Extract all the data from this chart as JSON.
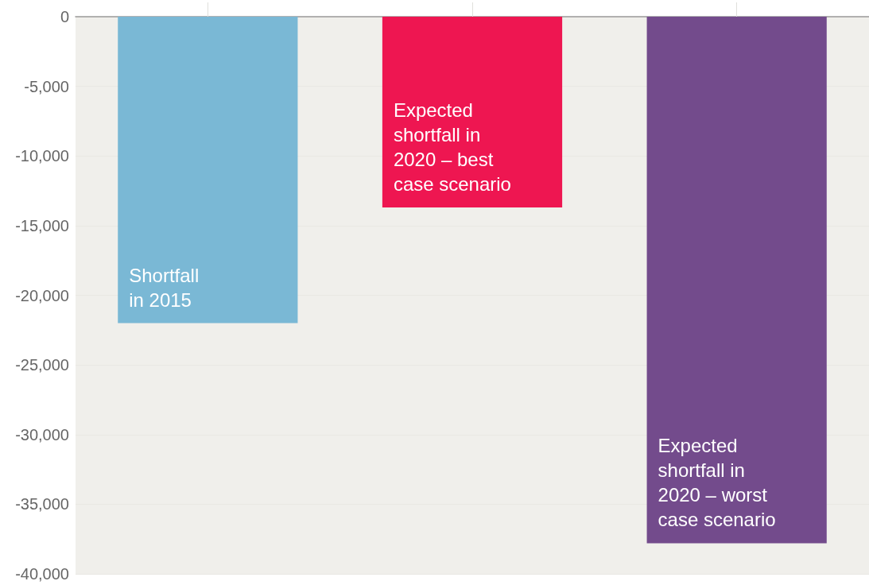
{
  "chart_data": {
    "type": "bar",
    "categories": [
      "Shortfall\nin 2015",
      "Expected\nshortfall in\n2020 – best\ncase scenario",
      "Expected\nshortfall in\n2020 – worst\ncase scenario"
    ],
    "values": [
      -22000,
      -13700,
      -37800
    ],
    "colors": [
      "#7ab8d5",
      "#ee1651",
      "#734b8c"
    ],
    "ylim": [
      -40000,
      0
    ],
    "yticks": [
      {
        "value": -40000,
        "label": "-40,000"
      },
      {
        "value": -35000,
        "label": "-35,000"
      },
      {
        "value": -30000,
        "label": "-30,000"
      },
      {
        "value": -25000,
        "label": "-25,000"
      },
      {
        "value": -20000,
        "label": "-20,000"
      },
      {
        "value": -15000,
        "label": "-15,000"
      },
      {
        "value": -10000,
        "label": "-10,000"
      },
      {
        "value": -5000,
        "label": "-5,000"
      },
      0
    ],
    "grid": "y",
    "tick_labels": "y"
  }
}
